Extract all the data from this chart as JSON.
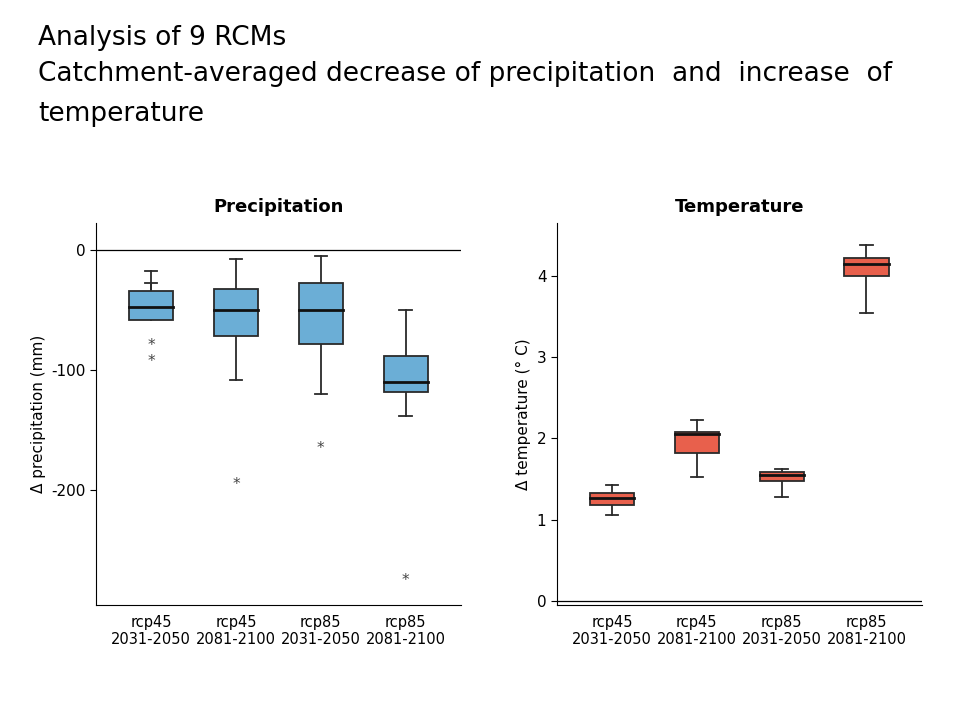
{
  "title_line1": "Analysis of 9 RCMs",
  "title_line2": "Catchment-averaged decrease of precipitation  and  increase  of",
  "title_line3": "temperature",
  "title_fontsize": 19,
  "precip_title": "Precipitation",
  "temp_title": "Temperature",
  "precip_categories": [
    "rcp45\n2031-2050",
    "rcp45\n2081-2100",
    "rcp85\n2031-2050",
    "rcp85\n2081-2100"
  ],
  "temp_categories": [
    "rcp45\n2031-2050",
    "rcp45\n2081-2100",
    "rcp85\n2031-2050",
    "rcp85\n2081-2100"
  ],
  "precip_boxes": [
    {
      "whislo": -28,
      "q1": -58,
      "med": -48,
      "q3": -34,
      "whishi": -18,
      "fliers": [
        -80,
        -93
      ]
    },
    {
      "whislo": -108,
      "q1": -72,
      "med": -50,
      "q3": -33,
      "whishi": -8,
      "fliers": [
        -195
      ]
    },
    {
      "whislo": -120,
      "q1": -78,
      "med": -50,
      "q3": -28,
      "whishi": -5,
      "fliers": [
        -165
      ]
    },
    {
      "whislo": -138,
      "q1": -118,
      "med": -110,
      "q3": -88,
      "whishi": -50,
      "fliers": [
        -275
      ]
    }
  ],
  "temp_boxes": [
    {
      "whislo": 1.05,
      "q1": 1.18,
      "med": 1.27,
      "q3": 1.33,
      "whishi": 1.42
    },
    {
      "whislo": 1.52,
      "q1": 1.82,
      "med": 2.05,
      "q3": 2.08,
      "whishi": 2.22
    },
    {
      "whislo": 1.28,
      "q1": 1.47,
      "med": 1.55,
      "q3": 1.58,
      "whishi": 1.62
    },
    {
      "whislo": 3.55,
      "q1": 4.0,
      "med": 4.15,
      "q3": 4.22,
      "whishi": 4.38
    }
  ],
  "precip_ylabel": "Δ precipitation (mm)",
  "temp_ylabel": "Δ temperature (° C)",
  "precip_ylim": [
    -295,
    22
  ],
  "temp_ylim": [
    -0.05,
    4.65
  ],
  "precip_yticks": [
    0,
    -100,
    -200
  ],
  "temp_yticks": [
    0,
    1,
    2,
    3,
    4
  ],
  "box_color_precip": "#6baed6",
  "box_color_temp": "#e8604c",
  "box_edge_color": "#2a2a2a",
  "median_color": "#111111",
  "whisker_color": "#2a2a2a",
  "flier_color": "#444444",
  "background_color": "#ffffff"
}
